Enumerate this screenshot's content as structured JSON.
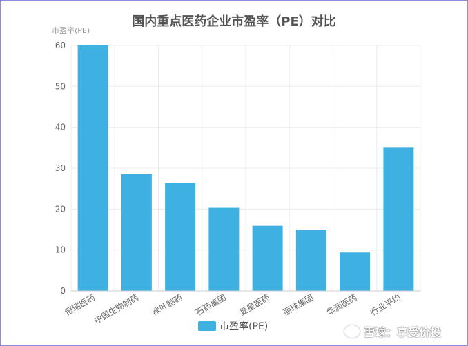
{
  "chart_data": {
    "type": "bar",
    "title": "国内重点医药企业市盈率（PE）对比",
    "ylabel": "市盈率(PE)",
    "xlabel": "",
    "ylim": [
      0,
      60
    ],
    "yticks": [
      0,
      10,
      20,
      30,
      40,
      50,
      60
    ],
    "grid": true,
    "legend_position": "bottom",
    "categories": [
      "恒瑞医药",
      "中国生物制药",
      "绿叶制药",
      "石药集团",
      "复星医药",
      "丽珠集团",
      "华润医药",
      "行业平均"
    ],
    "series": [
      {
        "name": "市盈率(PE)",
        "values": [
          60,
          28.5,
          26.4,
          20.3,
          15.9,
          15.0,
          9.4,
          35.0
        ],
        "color": "#3eb1e2"
      }
    ]
  },
  "watermark": "雪球：享受价投"
}
